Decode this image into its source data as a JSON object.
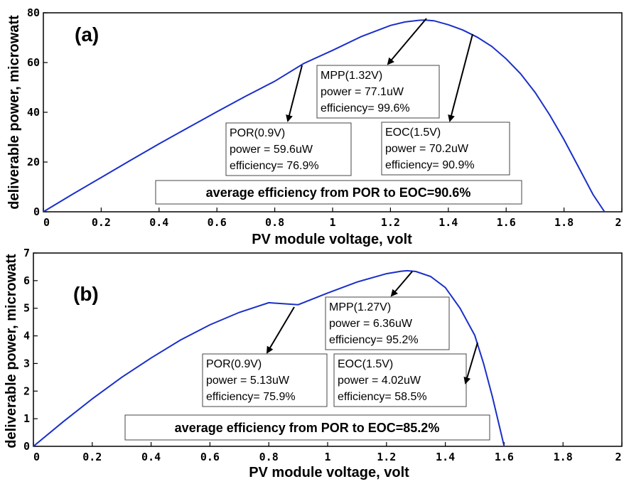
{
  "colors": {
    "curve": "#1a2fc9",
    "ink": "#000000",
    "background": "#ffffff"
  },
  "chart_data": [
    {
      "type": "line",
      "panel_label": "(a)",
      "xlabel": "PV module voltage, volt",
      "ylabel": "deliverable power, microwatt",
      "xlim": [
        0,
        2
      ],
      "ylim": [
        0,
        80
      ],
      "xticks": [
        "0",
        "0.2",
        "0.4",
        "0.6",
        "0.8",
        "1",
        "1.2",
        "1.4",
        "1.6",
        "1.8",
        "2"
      ],
      "yticks": [
        "0",
        "20",
        "40",
        "60",
        "80"
      ],
      "grid": false,
      "series": [
        {
          "x": [
            0,
            0.1,
            0.2,
            0.3,
            0.4,
            0.5,
            0.6,
            0.7,
            0.8,
            0.9,
            1.0,
            1.1,
            1.2,
            1.25,
            1.3,
            1.32,
            1.35,
            1.4,
            1.45,
            1.5,
            1.55,
            1.6,
            1.65,
            1.7,
            1.75,
            1.8,
            1.85,
            1.9,
            1.94
          ],
          "y": [
            0,
            7.0,
            13.8,
            20.6,
            27.3,
            33.8,
            40.2,
            46.5,
            52.5,
            59.6,
            64.9,
            70.5,
            74.9,
            76.3,
            77.0,
            77.1,
            76.8,
            75.2,
            73.1,
            70.2,
            66.5,
            61.5,
            55.5,
            48.0,
            39.0,
            29.0,
            18.0,
            7.0,
            0
          ]
        }
      ],
      "annotations": [
        {
          "lines": [
            "MPP(1.32V)",
            "power = 77.1uW",
            "efficiency= 99.6%"
          ],
          "point": [
            1.32,
            77.1
          ]
        },
        {
          "lines": [
            "POR(0.9V)",
            "power = 59.6uW",
            "efficiency= 76.9%"
          ],
          "point": [
            0.9,
            59.6
          ]
        },
        {
          "lines": [
            "EOC(1.5V)",
            "power = 70.2uW",
            "efficiency= 90.9%"
          ],
          "point": [
            1.5,
            70.2
          ]
        }
      ],
      "note": "average efficiency from POR to EOC=90.6%"
    },
    {
      "type": "line",
      "panel_label": "(b)",
      "xlabel": "PV module voltage, volt",
      "ylabel": "deliverable power, microwatt",
      "xlim": [
        0,
        2
      ],
      "ylim": [
        0,
        7
      ],
      "xticks": [
        "0",
        "0.2",
        "0.4",
        "0.6",
        "0.8",
        "1",
        "1.2",
        "1.4",
        "1.6",
        "1.8",
        "2"
      ],
      "yticks": [
        "0",
        "1",
        "2",
        "3",
        "4",
        "5",
        "6",
        "7"
      ],
      "grid": false,
      "series": [
        {
          "x": [
            0,
            0.1,
            0.2,
            0.3,
            0.4,
            0.5,
            0.6,
            0.7,
            0.8,
            0.9,
            1.0,
            1.1,
            1.2,
            1.25,
            1.27,
            1.3,
            1.35,
            1.4,
            1.45,
            1.5,
            1.53,
            1.56,
            1.58,
            1.6
          ],
          "y": [
            0,
            0.88,
            1.72,
            2.5,
            3.2,
            3.85,
            4.4,
            4.85,
            5.2,
            5.13,
            5.55,
            5.95,
            6.25,
            6.34,
            6.36,
            6.33,
            6.15,
            5.75,
            5.0,
            4.02,
            3.0,
            1.8,
            0.9,
            0
          ]
        }
      ],
      "annotations": [
        {
          "lines": [
            "MPP(1.27V)",
            "power = 6.36uW",
            "efficiency= 95.2%"
          ],
          "point": [
            1.27,
            6.36
          ]
        },
        {
          "lines": [
            "POR(0.9V)",
            "power = 5.13uW",
            "efficiency= 75.9%"
          ],
          "point": [
            0.9,
            5.13
          ]
        },
        {
          "lines": [
            "EOC(1.5V)",
            "power = 4.02uW",
            "efficiency= 58.5%"
          ],
          "point": [
            1.5,
            4.02
          ]
        }
      ],
      "note": "average efficiency from POR to EOC=85.2%"
    }
  ]
}
